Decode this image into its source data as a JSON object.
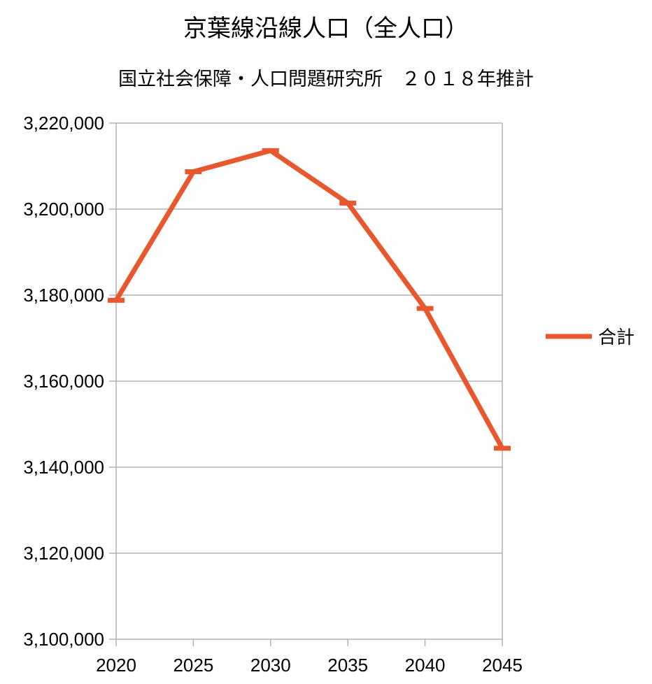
{
  "chart_data": {
    "type": "line",
    "title": "京葉線沿線人口（全人口）",
    "subtitle": "国立社会保障・人口問題研究所　２０１８年推計",
    "categories": [
      "2020",
      "2025",
      "2030",
      "2035",
      "2040",
      "2045"
    ],
    "series": [
      {
        "name": "合計",
        "values": [
          3178800,
          3208700,
          3213600,
          3201400,
          3176900,
          3144400
        ]
      }
    ],
    "ylim": [
      3100000,
      3220000
    ],
    "yticks": [
      3100000,
      3120000,
      3140000,
      3160000,
      3180000,
      3200000,
      3220000
    ],
    "ytick_labels": [
      "3,100,000",
      "3,120,000",
      "3,140,000",
      "3,160,000",
      "3,180,000",
      "3,200,000",
      "3,220,000"
    ],
    "grid": true,
    "legend_position": "right",
    "colors": {
      "series": "#e8582f",
      "grid": "#b3b3b3"
    }
  }
}
